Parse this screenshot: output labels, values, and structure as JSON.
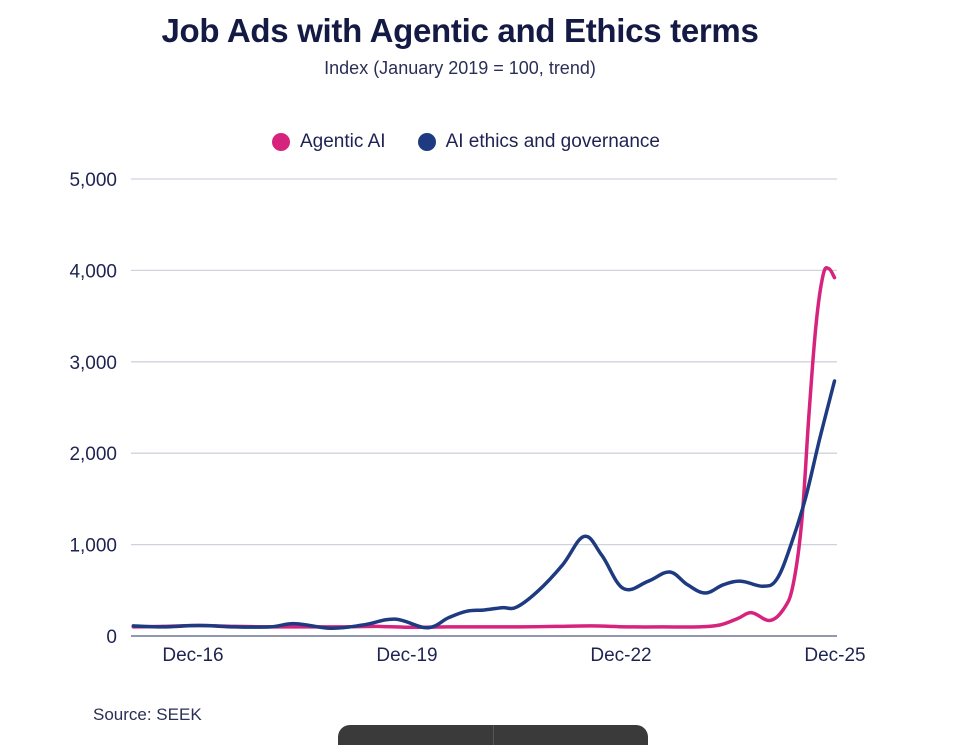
{
  "chart_data": {
    "type": "line",
    "title": "Job Ads with Agentic and Ethics terms",
    "subtitle": "Index (January 2019 = 100, trend)",
    "xlabel": "",
    "ylabel": "",
    "ylim": [
      0,
      5000
    ],
    "yticks": [
      0,
      1000,
      2000,
      3000,
      4000,
      5000
    ],
    "ytick_labels": [
      "0",
      "1,000",
      "2,000",
      "3,000",
      "4,000",
      "5,000"
    ],
    "xlim": [
      "Feb-16",
      "Dec-25"
    ],
    "xticks": [
      "Dec-16",
      "Dec-19",
      "Dec-22",
      "Dec-25"
    ],
    "grid": true,
    "legend_position": "top-center",
    "x_unit": "decimal year",
    "series": [
      {
        "name": "Agentic AI",
        "color": "#d6247e",
        "points": [
          [
            2016.08,
            100
          ],
          [
            2016.5,
            105
          ],
          [
            2017.0,
            115
          ],
          [
            2017.5,
            105
          ],
          [
            2018.0,
            100
          ],
          [
            2018.5,
            100
          ],
          [
            2019.0,
            100
          ],
          [
            2019.5,
            105
          ],
          [
            2020.0,
            95
          ],
          [
            2020.5,
            100
          ],
          [
            2021.0,
            100
          ],
          [
            2021.5,
            100
          ],
          [
            2022.0,
            105
          ],
          [
            2022.5,
            110
          ],
          [
            2023.0,
            100
          ],
          [
            2023.5,
            100
          ],
          [
            2024.0,
            100
          ],
          [
            2024.3,
            120
          ],
          [
            2024.55,
            190
          ],
          [
            2024.75,
            255
          ],
          [
            2025.0,
            170
          ],
          [
            2025.2,
            300
          ],
          [
            2025.33,
            560
          ],
          [
            2025.45,
            1250
          ],
          [
            2025.55,
            2400
          ],
          [
            2025.65,
            3400
          ],
          [
            2025.75,
            3950
          ],
          [
            2025.83,
            4020
          ],
          [
            2025.91,
            3920
          ]
        ]
      },
      {
        "name": "AI ethics and governance",
        "color": "#1e3a80",
        "points": [
          [
            2016.08,
            110
          ],
          [
            2016.5,
            100
          ],
          [
            2017.0,
            115
          ],
          [
            2017.5,
            100
          ],
          [
            2018.0,
            100
          ],
          [
            2018.35,
            135
          ],
          [
            2018.85,
            85
          ],
          [
            2019.3,
            120
          ],
          [
            2019.75,
            185
          ],
          [
            2020.2,
            90
          ],
          [
            2020.5,
            200
          ],
          [
            2020.75,
            270
          ],
          [
            2021.0,
            285
          ],
          [
            2021.25,
            310
          ],
          [
            2021.45,
            315
          ],
          [
            2021.75,
            490
          ],
          [
            2022.1,
            780
          ],
          [
            2022.4,
            1090
          ],
          [
            2022.65,
            880
          ],
          [
            2022.95,
            520
          ],
          [
            2023.3,
            600
          ],
          [
            2023.6,
            700
          ],
          [
            2023.85,
            560
          ],
          [
            2024.1,
            470
          ],
          [
            2024.35,
            560
          ],
          [
            2024.6,
            600
          ],
          [
            2024.9,
            545
          ],
          [
            2025.1,
            620
          ],
          [
            2025.3,
            1000
          ],
          [
            2025.5,
            1500
          ],
          [
            2025.7,
            2150
          ],
          [
            2025.91,
            2790
          ]
        ]
      }
    ]
  },
  "header": {
    "title": "Job Ads with Agentic and Ethics terms",
    "subtitle": "Index (January 2019 = 100, trend)"
  },
  "legend": {
    "items": [
      {
        "label": "Agentic AI",
        "color": "#d6247e"
      },
      {
        "label": "AI ethics and governance",
        "color": "#1e3a80"
      }
    ]
  },
  "footer": {
    "source": "Source: SEEK"
  }
}
